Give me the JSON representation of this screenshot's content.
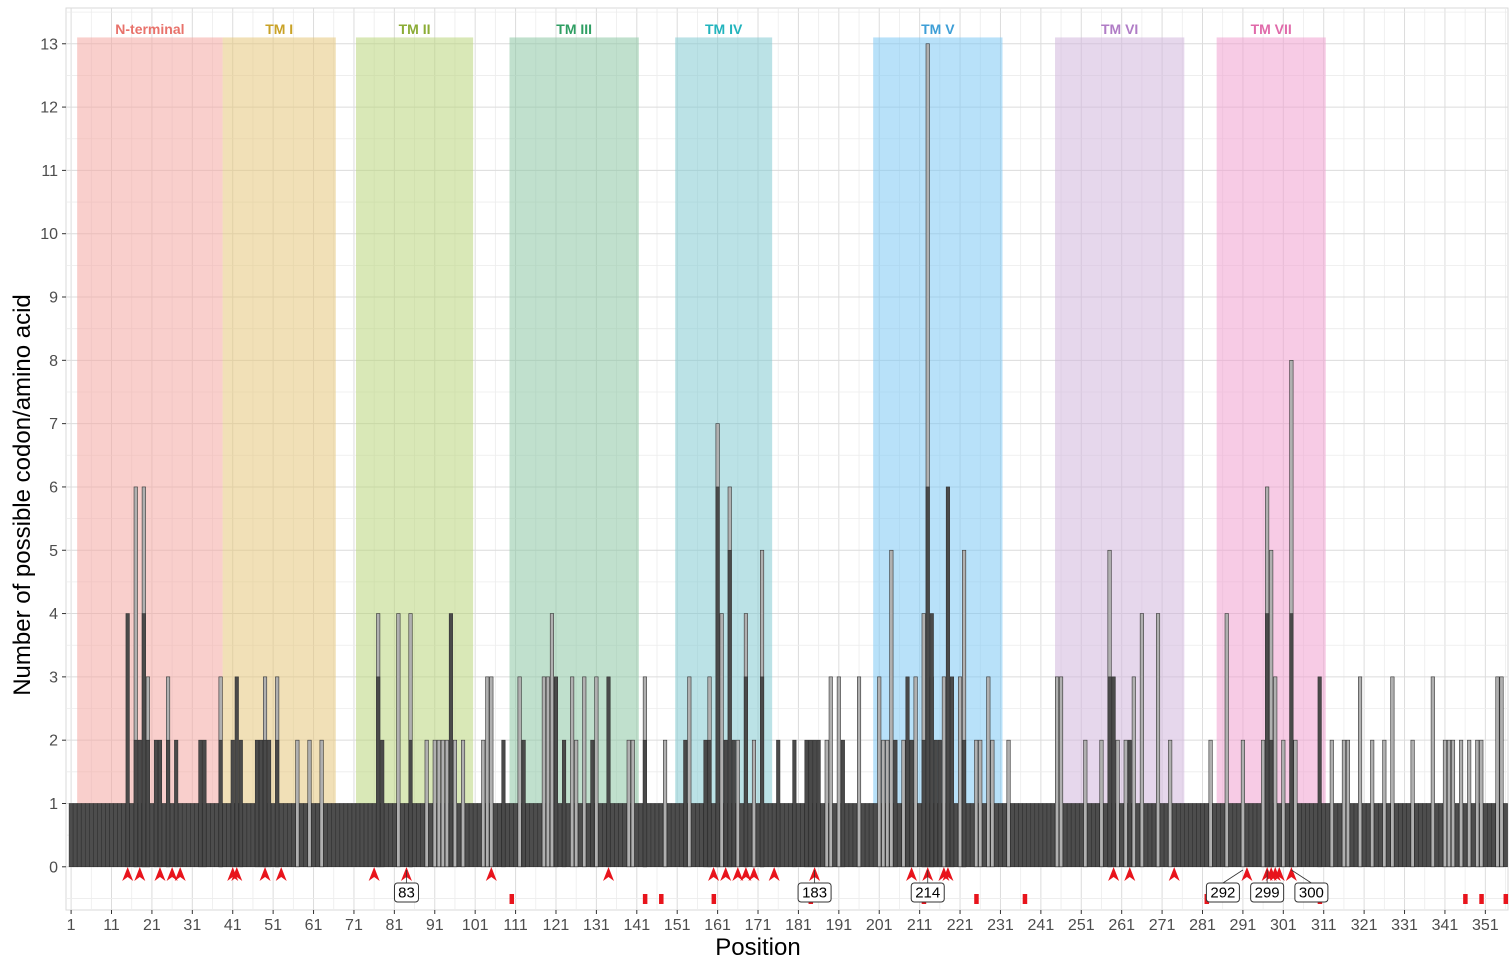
{
  "chart_data": {
    "type": "bar",
    "title": "",
    "xlabel": "Position",
    "ylabel": "Number of possible codon/amino acid",
    "xlim": [
      0,
      356
    ],
    "ylim": [
      -0.6,
      13.5
    ],
    "x_ticks": [
      1,
      11,
      21,
      31,
      41,
      51,
      61,
      71,
      81,
      91,
      101,
      111,
      121,
      131,
      141,
      151,
      161,
      171,
      181,
      191,
      201,
      211,
      221,
      231,
      241,
      251,
      261,
      271,
      281,
      291,
      301,
      311,
      321,
      331,
      341,
      351
    ],
    "y_ticks": [
      0,
      1,
      2,
      3,
      4,
      5,
      6,
      7,
      8,
      9,
      10,
      11,
      12,
      13
    ],
    "grid": true,
    "positions_start": 1,
    "positions_end": 356,
    "baseline_value": 1,
    "regions": [
      {
        "label": "N-terminal",
        "start": 3,
        "end": 38,
        "color": "#f4a8a3",
        "text_color": "#e8726b"
      },
      {
        "label": "TM I",
        "start": 39,
        "end": 66,
        "color": "#e5c77c",
        "text_color": "#c9a227"
      },
      {
        "label": "TM II",
        "start": 72,
        "end": 100,
        "color": "#bad57c",
        "text_color": "#8bac35"
      },
      {
        "label": "TM III",
        "start": 110,
        "end": 141,
        "color": "#8cc6a4",
        "text_color": "#2e9e62"
      },
      {
        "label": "TM IV",
        "start": 151,
        "end": 174,
        "color": "#84cbd1",
        "text_color": "#22b4bd"
      },
      {
        "label": "TM V",
        "start": 200,
        "end": 231,
        "color": "#7ec8f4",
        "text_color": "#3d9ed6"
      },
      {
        "label": "TM VI",
        "start": 245,
        "end": 276,
        "color": "#d2b6dc",
        "text_color": "#b07cc6"
      },
      {
        "label": "TM VII",
        "start": 285,
        "end": 311,
        "color": "#f0a0cf",
        "text_color": "#e06aaa"
      }
    ],
    "series": [
      {
        "name": "",
        "color": "#4a4a4a",
        "values": [
          [
            15,
            4
          ],
          [
            17,
            2
          ],
          [
            18,
            2
          ],
          [
            19,
            4
          ],
          [
            20,
            2
          ],
          [
            22,
            2
          ],
          [
            23,
            2
          ],
          [
            25,
            2
          ],
          [
            27,
            2
          ],
          [
            33,
            2
          ],
          [
            34,
            2
          ],
          [
            38,
            2
          ],
          [
            41,
            2
          ],
          [
            42,
            3
          ],
          [
            43,
            2
          ],
          [
            47,
            2
          ],
          [
            48,
            2
          ],
          [
            49,
            2
          ],
          [
            50,
            2
          ],
          [
            52,
            2
          ],
          [
            77,
            3
          ],
          [
            78,
            2
          ],
          [
            85,
            2
          ],
          [
            95,
            4
          ],
          [
            108,
            2
          ],
          [
            113,
            2
          ],
          [
            121,
            3
          ],
          [
            123,
            2
          ],
          [
            130,
            2
          ],
          [
            134,
            3
          ],
          [
            143,
            2
          ],
          [
            153,
            2
          ],
          [
            158,
            2
          ],
          [
            159,
            2
          ],
          [
            161,
            6
          ],
          [
            163,
            2
          ],
          [
            164,
            5
          ],
          [
            165,
            2
          ],
          [
            168,
            3
          ],
          [
            172,
            3
          ],
          [
            176,
            2
          ],
          [
            180,
            2
          ],
          [
            183,
            2
          ],
          [
            184,
            2
          ],
          [
            185,
            2
          ],
          [
            186,
            2
          ],
          [
            192,
            2
          ],
          [
            205,
            2
          ],
          [
            208,
            3
          ],
          [
            209,
            2
          ],
          [
            212,
            2
          ],
          [
            213,
            6
          ],
          [
            214,
            4
          ],
          [
            215,
            2
          ],
          [
            216,
            2
          ],
          [
            218,
            6
          ],
          [
            219,
            3
          ],
          [
            222,
            2
          ],
          [
            258,
            3
          ],
          [
            259,
            3
          ],
          [
            263,
            2
          ],
          [
            297,
            4
          ],
          [
            298,
            2
          ],
          [
            303,
            4
          ],
          [
            310,
            3
          ]
        ]
      },
      {
        "name": "",
        "color": "#b0b0b0",
        "values": [
          [
            17,
            6
          ],
          [
            19,
            6
          ],
          [
            20,
            3
          ],
          [
            25,
            3
          ],
          [
            38,
            3
          ],
          [
            49,
            3
          ],
          [
            52,
            3
          ],
          [
            57,
            2
          ],
          [
            60,
            2
          ],
          [
            63,
            2
          ],
          [
            77,
            4
          ],
          [
            82,
            4
          ],
          [
            85,
            4
          ],
          [
            89,
            2
          ],
          [
            91,
            2
          ],
          [
            92,
            2
          ],
          [
            93,
            2
          ],
          [
            94,
            2
          ],
          [
            96,
            2
          ],
          [
            98,
            2
          ],
          [
            103,
            2
          ],
          [
            104,
            3
          ],
          [
            105,
            3
          ],
          [
            112,
            3
          ],
          [
            118,
            3
          ],
          [
            119,
            3
          ],
          [
            120,
            4
          ],
          [
            125,
            3
          ],
          [
            126,
            2
          ],
          [
            128,
            3
          ],
          [
            131,
            3
          ],
          [
            139,
            2
          ],
          [
            140,
            2
          ],
          [
            143,
            3
          ],
          [
            148,
            2
          ],
          [
            154,
            3
          ],
          [
            159,
            3
          ],
          [
            161,
            7
          ],
          [
            162,
            4
          ],
          [
            164,
            6
          ],
          [
            166,
            2
          ],
          [
            168,
            4
          ],
          [
            170,
            2
          ],
          [
            172,
            5
          ],
          [
            188,
            2
          ],
          [
            189,
            3
          ],
          [
            191,
            3
          ],
          [
            196,
            3
          ],
          [
            201,
            3
          ],
          [
            202,
            2
          ],
          [
            203,
            2
          ],
          [
            204,
            5
          ],
          [
            207,
            2
          ],
          [
            210,
            3
          ],
          [
            212,
            4
          ],
          [
            213,
            13
          ],
          [
            214,
            3
          ],
          [
            217,
            3
          ],
          [
            221,
            3
          ],
          [
            222,
            5
          ],
          [
            225,
            2
          ],
          [
            226,
            2
          ],
          [
            228,
            3
          ],
          [
            229,
            2
          ],
          [
            233,
            2
          ],
          [
            245,
            3
          ],
          [
            246,
            3
          ],
          [
            252,
            2
          ],
          [
            256,
            2
          ],
          [
            258,
            5
          ],
          [
            260,
            2
          ],
          [
            262,
            2
          ],
          [
            264,
            3
          ],
          [
            266,
            4
          ],
          [
            270,
            4
          ],
          [
            273,
            2
          ],
          [
            283,
            2
          ],
          [
            287,
            4
          ],
          [
            291,
            2
          ],
          [
            296,
            2
          ],
          [
            297,
            6
          ],
          [
            298,
            5
          ],
          [
            299,
            3
          ],
          [
            301,
            2
          ],
          [
            303,
            8
          ],
          [
            304,
            2
          ],
          [
            313,
            2
          ],
          [
            316,
            2
          ],
          [
            317,
            2
          ],
          [
            320,
            3
          ],
          [
            323,
            2
          ],
          [
            326,
            2
          ],
          [
            328,
            3
          ],
          [
            333,
            2
          ],
          [
            338,
            3
          ],
          [
            341,
            2
          ],
          [
            342,
            2
          ],
          [
            343,
            2
          ],
          [
            345,
            2
          ],
          [
            347,
            2
          ],
          [
            349,
            2
          ],
          [
            350,
            2
          ],
          [
            354,
            3
          ],
          [
            355,
            3
          ]
        ]
      }
    ],
    "arrow_positions": [
      15,
      18,
      23,
      26,
      28,
      41,
      42,
      49,
      53,
      76,
      84,
      105,
      134,
      160,
      163,
      166,
      168,
      170,
      175,
      185,
      209,
      213,
      217,
      218,
      259,
      263,
      274,
      292,
      297,
      298,
      299,
      300,
      303
    ],
    "marker_positions": [
      110,
      143,
      147,
      160,
      184,
      212,
      225,
      237,
      282,
      310,
      346,
      350,
      356
    ],
    "callouts": [
      {
        "text": "83",
        "x": 84
      },
      {
        "text": "183",
        "x": 185
      },
      {
        "text": "214",
        "x": 213
      },
      {
        "text": "292",
        "x": 291
      },
      {
        "text": "299",
        "x": 297
      },
      {
        "text": "300",
        "x": 303
      }
    ]
  }
}
